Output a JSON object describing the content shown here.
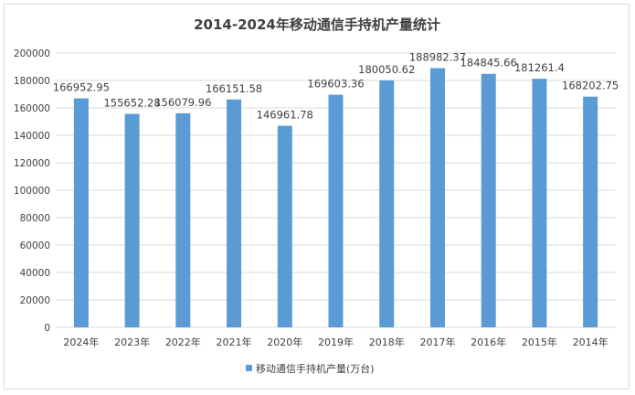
{
  "chart_data": {
    "type": "bar",
    "title": "2014-2024年移动通信手持机产量统计",
    "xlabel": "",
    "ylabel": "",
    "categories": [
      "2024年",
      "2023年",
      "2022年",
      "2021年",
      "2020年",
      "2019年",
      "2018年",
      "2017年",
      "2016年",
      "2015年",
      "2014年"
    ],
    "series": [
      {
        "name": "移动通信手持机产量(万台)",
        "values": [
          166952.95,
          155652.28,
          156079.96,
          166151.58,
          146961.78,
          169603.36,
          180050.62,
          188982.37,
          184845.66,
          181261.4,
          168202.75
        ]
      }
    ],
    "data_labels": [
      "166952.95",
      "155652.28",
      "156079.96",
      "166151.58",
      "146961.78",
      "169603.36",
      "180050.62",
      "188982.37",
      "184845.66",
      "181261.4",
      "168202.75"
    ],
    "ylim": [
      0,
      200000
    ],
    "yticks": [
      "0",
      "20000",
      "40000",
      "60000",
      "80000",
      "100000",
      "120000",
      "140000",
      "160000",
      "180000",
      "200000"
    ],
    "grid": true,
    "legend_position": "bottom",
    "colors": {
      "bar": "#5b9bd5",
      "grid": "#d9d9d9",
      "text": "#404040"
    }
  }
}
